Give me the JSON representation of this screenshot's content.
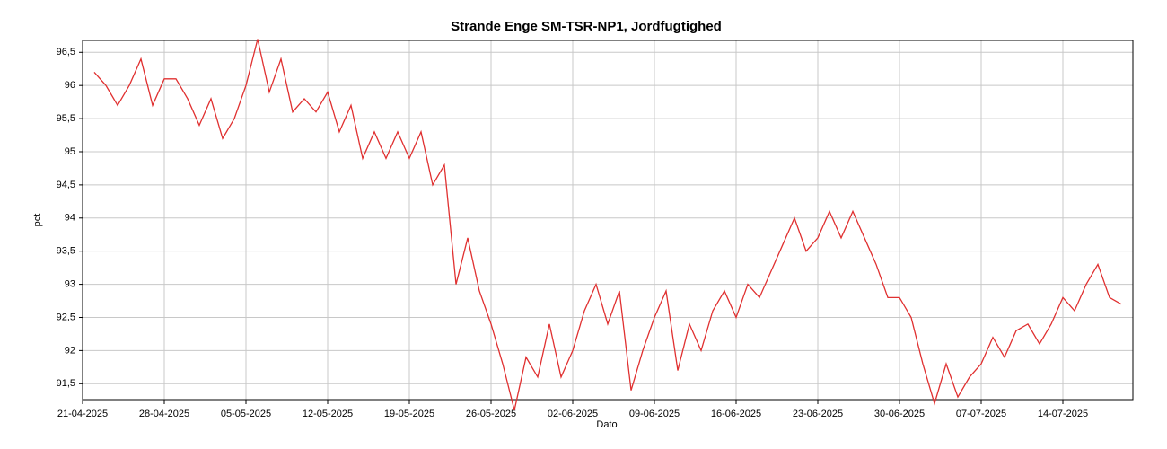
{
  "chart_data": {
    "type": "line",
    "title": "Strande Enge SM-TSR-NP1, Jordfugtighed",
    "xlabel": "Dato",
    "ylabel": "pct",
    "color": "#e03030",
    "grid": true,
    "xlim": [
      "2025-04-21",
      "2025-07-20"
    ],
    "xticks": [
      {
        "value": "2025-04-21",
        "label": "21-04-2025"
      },
      {
        "value": "2025-04-28",
        "label": "28-04-2025"
      },
      {
        "value": "2025-05-05",
        "label": "05-05-2025"
      },
      {
        "value": "2025-05-12",
        "label": "12-05-2025"
      },
      {
        "value": "2025-05-19",
        "label": "19-05-2025"
      },
      {
        "value": "2025-05-26",
        "label": "26-05-2025"
      },
      {
        "value": "2025-06-02",
        "label": "02-06-2025"
      },
      {
        "value": "2025-06-09",
        "label": "09-06-2025"
      },
      {
        "value": "2025-06-16",
        "label": "16-06-2025"
      },
      {
        "value": "2025-06-23",
        "label": "23-06-2025"
      },
      {
        "value": "2025-06-30",
        "label": "30-06-2025"
      },
      {
        "value": "2025-07-07",
        "label": "07-07-2025"
      },
      {
        "value": "2025-07-14",
        "label": "14-07-2025"
      }
    ],
    "ylim": [
      91.26,
      96.68
    ],
    "yticks": [
      {
        "value": 91.5,
        "label": "91,5"
      },
      92,
      {
        "value": 92.5,
        "label": "92,5"
      },
      93,
      {
        "value": 93.5,
        "label": "93,5"
      },
      94,
      {
        "value": 94.5,
        "label": "94,5"
      },
      95,
      {
        "value": 95.5,
        "label": "95,5"
      },
      96,
      {
        "value": 96.5,
        "label": "96,5"
      }
    ],
    "x": [
      "2025-04-22",
      "2025-04-23",
      "2025-04-24",
      "2025-04-25",
      "2025-04-26",
      "2025-04-27",
      "2025-04-28",
      "2025-04-29",
      "2025-04-30",
      "2025-05-01",
      "2025-05-02",
      "2025-05-03",
      "2025-05-04",
      "2025-05-05",
      "2025-05-06",
      "2025-05-07",
      "2025-05-08",
      "2025-05-09",
      "2025-05-10",
      "2025-05-11",
      "2025-05-12",
      "2025-05-13",
      "2025-05-14",
      "2025-05-15",
      "2025-05-16",
      "2025-05-17",
      "2025-05-18",
      "2025-05-19",
      "2025-05-20",
      "2025-05-21",
      "2025-05-22",
      "2025-05-23",
      "2025-05-24",
      "2025-05-25",
      "2025-05-26",
      "2025-05-27",
      "2025-05-28",
      "2025-05-29",
      "2025-05-30",
      "2025-05-31",
      "2025-06-01",
      "2025-06-02",
      "2025-06-03",
      "2025-06-04",
      "2025-06-05",
      "2025-06-06",
      "2025-06-07",
      "2025-06-08",
      "2025-06-09",
      "2025-06-10",
      "2025-06-11",
      "2025-06-12",
      "2025-06-13",
      "2025-06-14",
      "2025-06-15",
      "2025-06-16",
      "2025-06-17",
      "2025-06-18",
      "2025-06-19",
      "2025-06-20",
      "2025-06-21",
      "2025-06-22",
      "2025-06-23",
      "2025-06-24",
      "2025-06-25",
      "2025-06-26",
      "2025-06-27",
      "2025-06-28",
      "2025-06-29",
      "2025-06-30",
      "2025-07-01",
      "2025-07-02",
      "2025-07-03",
      "2025-07-04",
      "2025-07-05",
      "2025-07-06",
      "2025-07-07",
      "2025-07-08",
      "2025-07-09",
      "2025-07-10",
      "2025-07-11",
      "2025-07-12",
      "2025-07-13",
      "2025-07-14",
      "2025-07-15",
      "2025-07-16",
      "2025-07-17",
      "2025-07-18",
      "2025-07-19"
    ],
    "values": [
      96.2,
      96.0,
      95.7,
      96.0,
      96.4,
      95.7,
      96.1,
      96.1,
      95.8,
      95.4,
      95.8,
      95.2,
      95.5,
      96.0,
      96.7,
      95.9,
      96.4,
      95.6,
      95.8,
      95.6,
      95.9,
      95.3,
      95.7,
      94.9,
      95.3,
      94.9,
      95.3,
      94.9,
      95.3,
      94.5,
      94.8,
      93.0,
      93.7,
      92.9,
      92.4,
      91.8,
      91.1,
      91.9,
      91.6,
      92.4,
      91.6,
      92.0,
      92.6,
      93.0,
      92.4,
      92.9,
      91.4,
      92.0,
      92.5,
      92.9,
      91.7,
      92.4,
      92.0,
      92.6,
      92.9,
      92.5,
      93.0,
      92.8,
      93.2,
      93.6,
      94.0,
      93.5,
      93.7,
      94.1,
      93.7,
      94.1,
      93.7,
      93.3,
      92.8,
      92.8,
      92.5,
      91.8,
      91.2,
      91.8,
      91.3,
      91.6,
      91.8,
      92.2,
      91.9,
      92.3,
      92.4,
      92.1,
      92.4,
      92.8,
      92.6,
      93.0,
      93.3,
      92.8,
      92.7
    ]
  }
}
